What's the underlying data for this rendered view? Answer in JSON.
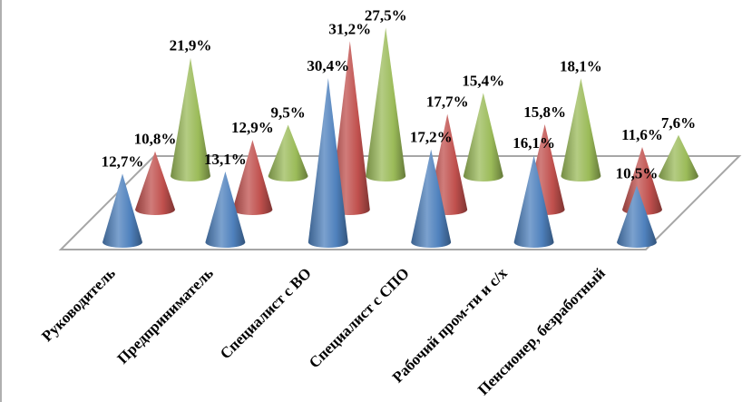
{
  "chart_data": {
    "type": "bar",
    "shape": "cone-3d",
    "categories": [
      "Руководитель",
      "Предприниматель",
      "Специалист с ВО",
      "Специалист с СПО",
      "Рабочий пром-ти и с/х",
      "Пенсионер, безработный"
    ],
    "series": [
      {
        "color": "#4f81bd",
        "values": [
          12.7,
          13.1,
          30.4,
          17.2,
          16.1,
          10.5
        ],
        "labels": [
          "12,7%",
          "13,1%",
          "30,4%",
          "17,2%",
          "16,1%",
          "10,5%"
        ]
      },
      {
        "color": "#c0504d",
        "values": [
          10.8,
          12.9,
          31.2,
          17.7,
          15.8,
          11.6
        ],
        "labels": [
          "10,8%",
          "12,9%",
          "31,2%",
          "17,7%",
          "15,8%",
          "11,6%"
        ]
      },
      {
        "color": "#9bbb59",
        "values": [
          21.9,
          9.5,
          27.5,
          15.4,
          18.1,
          7.6
        ],
        "labels": [
          "21,9%",
          "9,5%",
          "27,5%",
          "15,4%",
          "18,1%",
          "7,6%"
        ]
      }
    ],
    "value_unit": "%",
    "title": "",
    "xlabel": "",
    "ylabel": "",
    "legend": "none",
    "grid": false,
    "data_labels": true
  }
}
